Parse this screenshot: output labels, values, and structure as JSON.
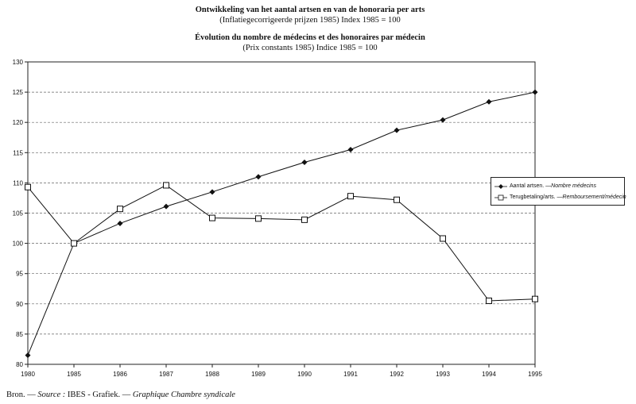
{
  "title": {
    "nl_line1": "Ontwikkeling van het aantal artsen en van de honoraria per arts",
    "nl_line2": "(Inflatiegecorrigeerde prijzen 1985) Index 1985 = 100",
    "fr_line1": "Évolution du nombre de médecins et des honoraires par médecin",
    "fr_line2": "(Prix constants 1985) Indice 1985 = 100"
  },
  "source": {
    "prefix": "Bron. — ",
    "source_label": "Source :",
    "text": " IBES - Grafiek. — ",
    "graphique": "Graphique Chambre syndicale"
  },
  "legend": {
    "series1_nl": "Aantal artsen. — ",
    "series1_fr": "Nombre médecins",
    "series2_nl": "Terugbetaling/arts. — ",
    "series2_fr": "Remboursement/médecin"
  },
  "chart_data": {
    "type": "line",
    "categories": [
      "1980",
      "1985",
      "1986",
      "1987",
      "1988",
      "1989",
      "1990",
      "1991",
      "1992",
      "1993",
      "1994",
      "1995"
    ],
    "ylim": [
      80,
      130
    ],
    "yticks": [
      80,
      85,
      90,
      95,
      100,
      105,
      110,
      115,
      120,
      125,
      130
    ],
    "grid": true,
    "legend_position": "right",
    "series": [
      {
        "name": "Aantal artsen. — Nombre médecins",
        "marker": "diamond",
        "values": [
          81.5,
          100,
          103.3,
          106.1,
          108.5,
          111.0,
          113.4,
          115.5,
          118.7,
          120.4,
          123.4,
          125.0
        ]
      },
      {
        "name": "Terugbetaling/arts. — Remboursement/médecin",
        "marker": "square",
        "values": [
          109.3,
          100,
          105.7,
          109.6,
          104.2,
          104.1,
          103.9,
          107.8,
          107.2,
          100.8,
          90.5,
          90.8
        ]
      }
    ]
  }
}
